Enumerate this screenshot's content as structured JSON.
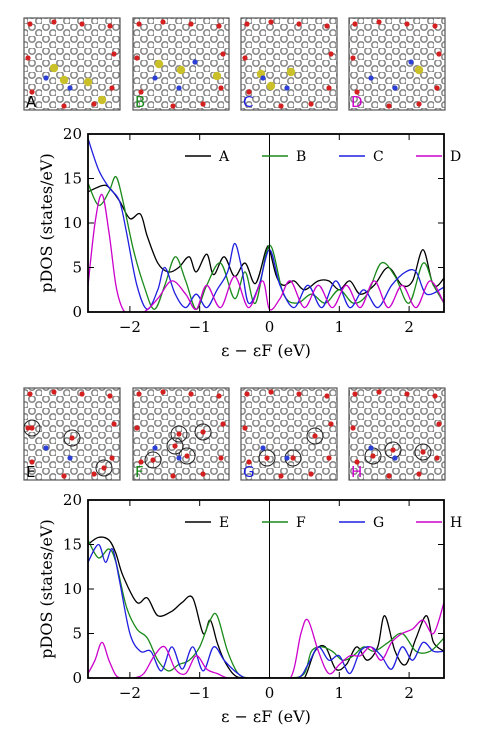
{
  "colors": {
    "A": "#000000",
    "B": "#1a8a1a",
    "C": "#1f1fe0",
    "D": "#cc00cc",
    "E": "#000000",
    "F": "#1a8a1a",
    "G": "#1f1fe0",
    "H": "#cc00cc",
    "carbon": "#9a9a9a",
    "oxygen": "#d42020",
    "nitrogen": "#2c3fd6",
    "sulfur": "#c9c02a"
  },
  "structure_labels_top": [
    "A",
    "B",
    "C",
    "D"
  ],
  "structure_labels_bottom": [
    "E",
    "F",
    "G",
    "H"
  ],
  "chart_data": [
    {
      "type": "line",
      "xlabel": "ε − εF (eV)",
      "ylabel": "pDOS (states/eV)",
      "xlim": [
        -2.6,
        2.5
      ],
      "ylim": [
        0,
        20
      ],
      "xticks": [
        -2,
        -1,
        0,
        1,
        2
      ],
      "yticks": [
        0,
        5,
        10,
        15,
        20
      ],
      "fermi_line_x": 0,
      "legend_position": "top-right",
      "series": [
        {
          "name": "A",
          "color_key": "A",
          "x": [
            -2.6,
            -2.4,
            -2.3,
            -2.15,
            -2.0,
            -1.85,
            -1.75,
            -1.6,
            -1.45,
            -1.3,
            -1.15,
            -1.05,
            -0.9,
            -0.8,
            -0.65,
            -0.5,
            -0.35,
            -0.2,
            -0.05,
            0.0,
            0.1,
            0.2,
            0.35,
            0.5,
            0.7,
            0.85,
            1.0,
            1.15,
            1.3,
            1.5,
            1.7,
            1.9,
            2.05,
            2.2,
            2.35,
            2.5
          ],
          "y": [
            13.5,
            14.2,
            14.0,
            12.5,
            10.5,
            11.0,
            8.5,
            5.5,
            4.5,
            5.0,
            6.2,
            4.5,
            6.5,
            4.2,
            6.2,
            4.0,
            5.5,
            3.2,
            7.0,
            7.0,
            4.0,
            3.0,
            3.5,
            2.5,
            3.5,
            3.5,
            2.5,
            3.5,
            2.0,
            3.0,
            5.0,
            3.0,
            3.5,
            7.0,
            3.0,
            3.8
          ]
        },
        {
          "name": "B",
          "color_key": "B",
          "x": [
            -2.6,
            -2.45,
            -2.3,
            -2.2,
            -2.1,
            -1.95,
            -1.8,
            -1.65,
            -1.5,
            -1.35,
            -1.2,
            -1.05,
            -0.9,
            -0.7,
            -0.5,
            -0.35,
            -0.2,
            0.0,
            0.2,
            0.4,
            0.6,
            0.8,
            1.0,
            1.2,
            1.4,
            1.6,
            1.8,
            2.0,
            2.2,
            2.35,
            2.5
          ],
          "y": [
            14.5,
            12.0,
            13.5,
            15.2,
            12.5,
            7.0,
            3.0,
            0.3,
            3.0,
            6.2,
            3.5,
            0.3,
            3.0,
            5.5,
            1.5,
            4.5,
            1.0,
            7.5,
            2.0,
            1.0,
            2.0,
            1.0,
            2.5,
            1.0,
            2.0,
            5.5,
            4.0,
            1.0,
            5.5,
            3.0,
            1.0
          ]
        },
        {
          "name": "C",
          "color_key": "C",
          "x": [
            -2.6,
            -2.45,
            -2.3,
            -2.15,
            -2.05,
            -1.9,
            -1.75,
            -1.6,
            -1.5,
            -1.35,
            -1.2,
            -1.05,
            -0.9,
            -0.75,
            -0.6,
            -0.5,
            -0.4,
            -0.3,
            -0.15,
            0.0,
            0.15,
            0.35,
            0.55,
            0.75,
            0.95,
            1.15,
            1.35,
            1.55,
            1.75,
            1.95,
            2.1,
            2.25,
            2.5
          ],
          "y": [
            19.5,
            16.0,
            14.0,
            12.5,
            9.0,
            3.0,
            0.3,
            2.5,
            5.0,
            2.0,
            0.5,
            2.0,
            0.5,
            2.5,
            4.5,
            7.7,
            5.0,
            1.0,
            3.0,
            7.0,
            3.0,
            0.5,
            3.0,
            0.5,
            3.5,
            0.5,
            2.5,
            0.5,
            3.0,
            4.5,
            4.5,
            2.0,
            2.8
          ]
        },
        {
          "name": "D",
          "color_key": "D",
          "x": [
            -2.6,
            -2.5,
            -2.4,
            -2.3,
            -2.2,
            -2.1,
            -2.0,
            -1.8,
            -1.6,
            -1.4,
            -1.2,
            -1.05,
            -0.9,
            -0.7,
            -0.5,
            -0.3,
            -0.1,
            0.0,
            0.15,
            0.3,
            0.5,
            0.7,
            0.9,
            1.1,
            1.3,
            1.5,
            1.7,
            1.9,
            2.1,
            2.3,
            2.5
          ],
          "y": [
            3.0,
            10.0,
            13.2,
            9.0,
            3.0,
            0.3,
            0.0,
            0.0,
            1.5,
            3.5,
            2.0,
            0.3,
            3.0,
            0.5,
            4.0,
            0.5,
            3.5,
            0.3,
            1.5,
            3.5,
            0.5,
            3.0,
            0.5,
            3.0,
            0.5,
            3.5,
            0.5,
            3.0,
            0.5,
            3.5,
            1.0
          ]
        }
      ]
    },
    {
      "type": "line",
      "xlabel": "ε − εF (eV)",
      "ylabel": "pDOS (states/eV)",
      "xlim": [
        -2.6,
        2.5
      ],
      "ylim": [
        0,
        20
      ],
      "xticks": [
        -2,
        -1,
        0,
        1,
        2
      ],
      "yticks": [
        0,
        5,
        10,
        15,
        20
      ],
      "fermi_line_x": 0,
      "legend_position": "top-right",
      "series": [
        {
          "name": "E",
          "color_key": "E",
          "x": [
            -2.6,
            -2.45,
            -2.3,
            -2.2,
            -2.1,
            -1.9,
            -1.75,
            -1.6,
            -1.4,
            -1.25,
            -1.1,
            -0.95,
            -0.85,
            -0.75,
            -0.65,
            -0.5,
            -0.35,
            -0.2,
            -0.1,
            0.0,
            0.1,
            0.2,
            0.35,
            0.5,
            0.65,
            0.8,
            0.95,
            1.1,
            1.25,
            1.4,
            1.55,
            1.65,
            1.8,
            1.95,
            2.1,
            2.25,
            2.35,
            2.5
          ],
          "y": [
            15.0,
            15.8,
            15.5,
            14.0,
            11.5,
            8.5,
            9.0,
            7.0,
            7.5,
            8.5,
            9.0,
            5.0,
            6.5,
            4.0,
            2.0,
            0.3,
            0.0,
            0.0,
            0.0,
            0.0,
            0.0,
            0.0,
            0.0,
            0.0,
            3.0,
            3.5,
            1.0,
            1.5,
            3.5,
            2.0,
            3.5,
            7.0,
            3.0,
            1.5,
            4.5,
            7.0,
            4.0,
            3.0
          ]
        },
        {
          "name": "F",
          "color_key": "F",
          "x": [
            -2.6,
            -2.45,
            -2.3,
            -2.2,
            -2.05,
            -1.9,
            -1.75,
            -1.6,
            -1.45,
            -1.3,
            -1.15,
            -1.0,
            -0.85,
            -0.75,
            -0.6,
            -0.45,
            -0.3,
            -0.2,
            -0.1,
            0.0,
            0.3,
            0.5,
            0.6,
            0.75,
            0.9,
            1.05,
            1.2,
            1.35,
            1.5,
            1.7,
            1.9,
            2.1,
            2.3,
            2.5
          ],
          "y": [
            15.5,
            13.5,
            14.5,
            13.0,
            8.0,
            5.5,
            4.5,
            2.0,
            0.8,
            1.5,
            2.0,
            3.5,
            6.5,
            7.0,
            3.0,
            0.5,
            0.0,
            0.0,
            0.0,
            0.0,
            0.0,
            0.5,
            3.0,
            3.5,
            3.0,
            2.0,
            2.5,
            3.5,
            3.0,
            4.0,
            5.0,
            3.0,
            3.0,
            4.5
          ]
        },
        {
          "name": "G",
          "color_key": "G",
          "x": [
            -2.6,
            -2.45,
            -2.35,
            -2.25,
            -2.15,
            -2.0,
            -1.85,
            -1.7,
            -1.55,
            -1.4,
            -1.25,
            -1.1,
            -0.95,
            -0.8,
            -0.65,
            -0.5,
            -0.35,
            -0.2,
            0.0,
            0.4,
            0.55,
            0.7,
            0.85,
            1.0,
            1.15,
            1.3,
            1.45,
            1.6,
            1.75,
            1.9,
            2.05,
            2.2,
            2.35,
            2.5
          ],
          "y": [
            13.0,
            15.0,
            13.0,
            14.5,
            11.0,
            5.0,
            3.0,
            3.0,
            0.8,
            3.5,
            1.0,
            3.5,
            0.8,
            3.5,
            2.0,
            0.8,
            0.0,
            0.0,
            0.0,
            0.0,
            1.5,
            3.5,
            2.0,
            2.5,
            0.5,
            3.0,
            3.5,
            2.5,
            1.0,
            3.5,
            2.0,
            4.0,
            3.0,
            3.0
          ]
        },
        {
          "name": "H",
          "color_key": "H",
          "x": [
            -2.6,
            -2.5,
            -2.4,
            -2.3,
            -2.2,
            -2.1,
            -1.95,
            -1.8,
            -1.65,
            -1.5,
            -1.35,
            -1.2,
            -1.05,
            -0.9,
            -0.75,
            -0.6,
            -0.45,
            -0.3,
            0.0,
            0.3,
            0.45,
            0.55,
            0.7,
            0.85,
            1.0,
            1.15,
            1.3,
            1.45,
            1.6,
            1.75,
            1.9,
            2.05,
            2.2,
            2.35,
            2.5
          ],
          "y": [
            0.5,
            2.0,
            4.0,
            2.0,
            0.3,
            0.0,
            0.0,
            0.5,
            2.5,
            3.5,
            1.0,
            0.5,
            2.5,
            1.0,
            0.5,
            0.0,
            0.0,
            0.0,
            0.0,
            0.0,
            5.0,
            6.5,
            3.0,
            0.5,
            1.5,
            2.5,
            2.5,
            3.5,
            2.0,
            4.0,
            5.0,
            5.5,
            6.5,
            5.0,
            8.5
          ]
        }
      ]
    }
  ]
}
